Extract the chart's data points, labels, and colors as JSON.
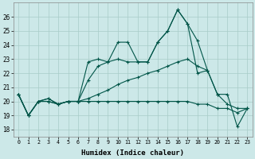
{
  "xlabel": "Humidex (Indice chaleur)",
  "bg_color": "#cce8e8",
  "grid_color": "#a8ccc8",
  "line_color": "#005548",
  "xlim": [
    -0.5,
    23.5
  ],
  "ylim": [
    17.5,
    27.0
  ],
  "yticks": [
    18,
    19,
    20,
    21,
    22,
    23,
    24,
    25,
    26
  ],
  "xticks": [
    0,
    1,
    2,
    3,
    4,
    5,
    6,
    7,
    8,
    9,
    10,
    11,
    12,
    13,
    14,
    15,
    16,
    17,
    18,
    19,
    20,
    21,
    22,
    23
  ],
  "lines": [
    {
      "x": [
        0,
        1,
        2,
        3,
        4,
        5,
        6,
        7,
        8,
        9,
        10,
        11,
        12,
        13,
        14,
        15,
        16,
        17,
        18,
        19,
        20,
        21,
        22,
        23
      ],
      "y": [
        20.5,
        19.0,
        20.0,
        20.2,
        19.8,
        20.0,
        20.0,
        22.8,
        23.0,
        22.8,
        24.2,
        24.2,
        22.8,
        22.8,
        24.2,
        25.0,
        26.5,
        25.5,
        24.3,
        22.2,
        20.5,
        20.5,
        18.2,
        19.5
      ]
    },
    {
      "x": [
        0,
        1,
        2,
        3,
        4,
        5,
        6,
        7,
        8,
        9,
        10,
        11,
        12,
        13,
        14,
        15,
        16,
        17,
        18,
        19
      ],
      "y": [
        20.5,
        19.0,
        20.0,
        20.2,
        19.8,
        20.0,
        20.0,
        21.5,
        22.5,
        22.8,
        23.0,
        22.8,
        22.8,
        22.8,
        24.2,
        25.0,
        26.5,
        25.5,
        22.0,
        22.2
      ]
    },
    {
      "x": [
        0,
        1,
        2,
        3,
        4,
        5,
        6,
        7,
        8,
        9,
        10,
        11,
        12,
        13,
        14,
        15,
        16,
        17,
        18,
        19,
        20,
        21,
        22,
        23
      ],
      "y": [
        20.5,
        19.0,
        20.0,
        20.0,
        19.8,
        20.0,
        20.0,
        20.2,
        20.5,
        20.8,
        21.2,
        21.5,
        21.7,
        22.0,
        22.2,
        22.5,
        22.8,
        23.0,
        22.5,
        22.2,
        20.5,
        19.8,
        19.5,
        19.5
      ]
    },
    {
      "x": [
        0,
        1,
        2,
        3,
        4,
        5,
        6,
        7,
        8,
        9,
        10,
        11,
        12,
        13,
        14,
        15,
        16,
        17,
        18,
        19,
        20,
        21,
        22,
        23
      ],
      "y": [
        20.5,
        19.0,
        20.0,
        20.0,
        19.8,
        20.0,
        20.0,
        20.0,
        20.0,
        20.0,
        20.0,
        20.0,
        20.0,
        20.0,
        20.0,
        20.0,
        20.0,
        20.0,
        19.8,
        19.8,
        19.5,
        19.5,
        19.2,
        19.5
      ]
    }
  ]
}
